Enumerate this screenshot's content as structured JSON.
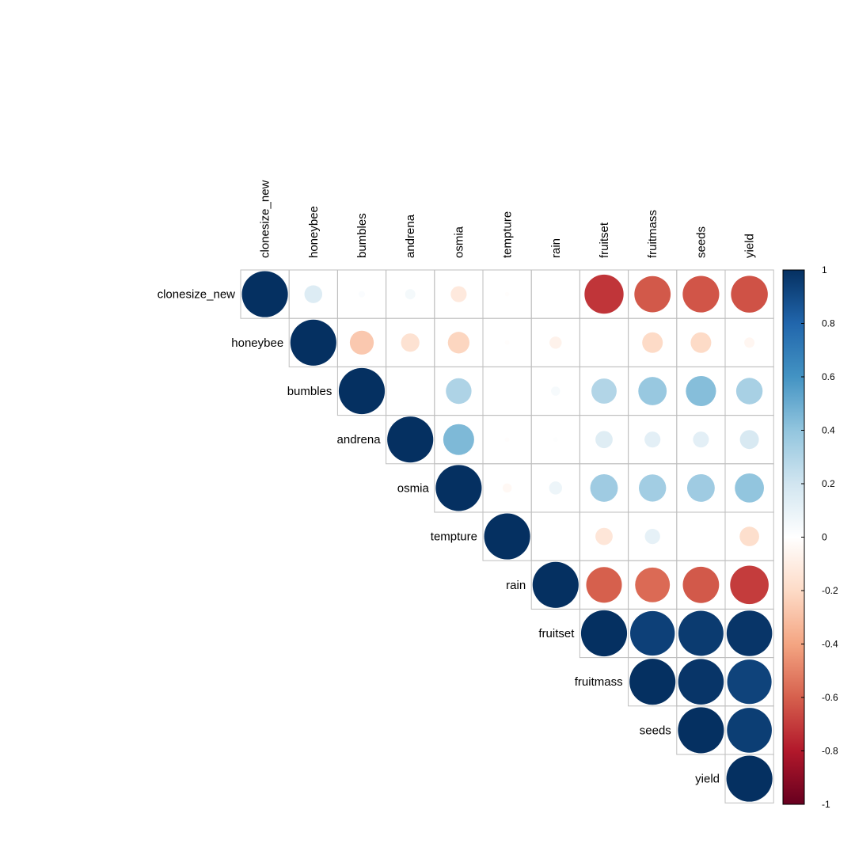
{
  "chart_data": {
    "type": "heatmap",
    "style": "corrplot-circle-upper-triangle",
    "variables": [
      "clonesize_new",
      "honeybee",
      "bumbles",
      "andrena",
      "osmia",
      "tempture",
      "rain",
      "fruitset",
      "fruitmass",
      "seeds",
      "yield"
    ],
    "matrix": [
      [
        1.0,
        0.15,
        0.02,
        0.05,
        -0.12,
        -0.01,
        0.0,
        -0.72,
        -0.62,
        -0.63,
        -0.64
      ],
      [
        0.15,
        1.0,
        -0.27,
        -0.16,
        -0.22,
        -0.01,
        -0.07,
        0.0,
        -0.2,
        -0.2,
        -0.05
      ],
      [
        0.02,
        -0.27,
        1.0,
        0.0,
        0.31,
        0.0,
        0.04,
        0.3,
        0.38,
        0.43,
        0.33
      ],
      [
        0.05,
        -0.16,
        0.0,
        1.0,
        0.45,
        -0.01,
        0.01,
        0.14,
        0.12,
        0.12,
        0.17
      ],
      [
        -0.12,
        -0.22,
        0.31,
        0.45,
        1.0,
        -0.04,
        0.08,
        0.36,
        0.35,
        0.36,
        0.4
      ],
      [
        -0.01,
        -0.01,
        0.0,
        -0.01,
        -0.04,
        1.0,
        0.0,
        -0.14,
        0.11,
        0.0,
        -0.18
      ],
      [
        0.0,
        -0.07,
        0.04,
        0.01,
        0.08,
        0.0,
        1.0,
        -0.6,
        -0.57,
        -0.62,
        -0.7
      ],
      [
        -0.72,
        0.0,
        0.3,
        0.14,
        0.36,
        -0.14,
        -0.6,
        1.0,
        0.94,
        0.96,
        0.98
      ],
      [
        -0.62,
        -0.2,
        0.38,
        0.12,
        0.35,
        0.11,
        -0.57,
        0.94,
        1.0,
        0.98,
        0.93
      ],
      [
        -0.63,
        -0.2,
        0.43,
        0.12,
        0.36,
        0.0,
        -0.62,
        0.96,
        0.98,
        1.0,
        0.95
      ],
      [
        -0.64,
        -0.05,
        0.33,
        0.17,
        0.4,
        -0.18,
        -0.7,
        0.98,
        0.93,
        0.95,
        1.0
      ]
    ],
    "colorbar": {
      "ticks": [
        "1",
        "0.8",
        "0.6",
        "0.4",
        "0.2",
        "0",
        "-0.2",
        "-0.4",
        "-0.6",
        "-0.8",
        "-1"
      ],
      "range": [
        -1,
        1
      ]
    },
    "palette": [
      "#67001F",
      "#B2182B",
      "#D6604D",
      "#F4A582",
      "#FDDBC7",
      "#FFFFFF",
      "#D1E5F0",
      "#92C5DE",
      "#4393C3",
      "#2166AC",
      "#053061"
    ]
  }
}
